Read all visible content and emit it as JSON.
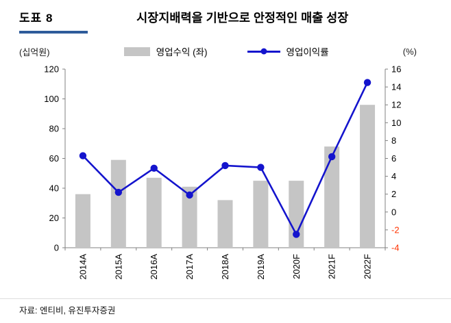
{
  "header": {
    "figure_label": "도표 8",
    "title": "시장지배력을 기반으로 안정적인 매출 성장",
    "accent_color": "#2E5B9A"
  },
  "axes": {
    "left_unit": "(십억원)",
    "right_unit": "(%)"
  },
  "legend": {
    "bar_label": "영업수익 (좌)",
    "line_label": "영업이익률"
  },
  "footer": {
    "source": "자료: 엔티비, 유진투자증권"
  },
  "chart_data": {
    "type": "bar",
    "subtype": "bar+line combo, line on secondary axis",
    "categories": [
      "2014A",
      "2015A",
      "2016A",
      "2017A",
      "2018A",
      "2019A",
      "2020F",
      "2021F",
      "2022F"
    ],
    "series": [
      {
        "name": "영업수익 (좌)",
        "type": "bar",
        "axis": "left",
        "color": "#C5C5C5",
        "values": [
          36,
          59,
          47,
          41,
          32,
          45,
          45,
          68,
          96
        ]
      },
      {
        "name": "영업이익률",
        "type": "line",
        "axis": "right",
        "color": "#1414CD",
        "values": [
          6.3,
          2.2,
          4.9,
          1.9,
          5.2,
          5.0,
          -2.5,
          6.2,
          14.5
        ]
      }
    ],
    "title": "시장지배력을 기반으로 안정적인 매출 성장",
    "xlabel": "",
    "ylabel_left": "(십억원)",
    "ylabel_right": "(%)",
    "left_axis": {
      "min": 0,
      "max": 120,
      "step": 20,
      "ticks": [
        0,
        20,
        40,
        60,
        80,
        100,
        120
      ]
    },
    "right_axis": {
      "min": -4,
      "max": 16,
      "step": 2,
      "ticks": [
        -4,
        -2,
        0,
        2,
        4,
        6,
        8,
        10,
        12,
        14,
        16
      ],
      "negative_tick_color": "#FF3300"
    },
    "grid": false,
    "legend_position": "top",
    "axis_color": "#808080",
    "x_label_rotation": -90
  }
}
